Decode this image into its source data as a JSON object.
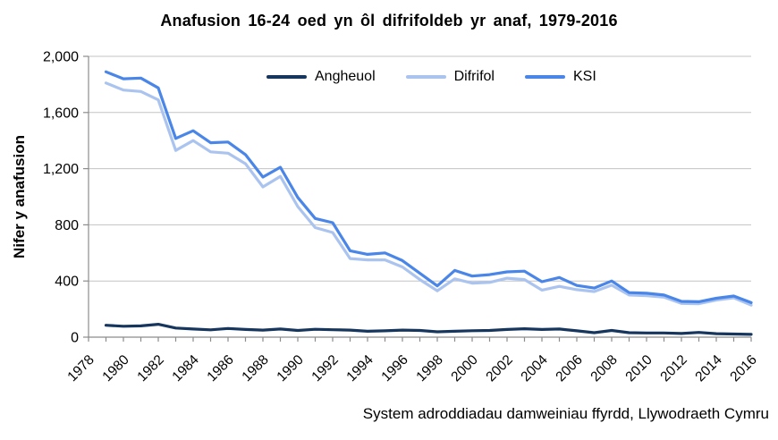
{
  "chart": {
    "title": "Anafusion  16-24  oed yn ôl difrifoldeb  yr anaf, 1979-2016",
    "ylabel": "Nifer y anafusion",
    "source": "System adroddiadau damweiniau ffyrdd, Llywodraeth Cymru"
  },
  "chart_data": {
    "type": "line",
    "title": "Anafusion 16-24 oed yn ôl difrifoldeb yr anaf, 1979-2016",
    "xlabel": "",
    "ylabel": "Nifer y anafusion",
    "source": "System adroddiadau damweiniau ffyrdd, Llywodraeth Cymru",
    "xlim": [
      1978,
      2016
    ],
    "ylim": [
      0,
      2000
    ],
    "grid": "horizontal",
    "legend_position": "top-center",
    "ytick_values": [
      0,
      400,
      800,
      1200,
      1600,
      2000
    ],
    "ytick_labels": [
      "0",
      "400",
      "800",
      "1,200",
      "1,600",
      "2,000"
    ],
    "xtick_label_years": [
      1978,
      1980,
      1982,
      1984,
      1986,
      1988,
      1990,
      1992,
      1994,
      1996,
      1998,
      2000,
      2002,
      2004,
      2006,
      2008,
      2010,
      2012,
      2014,
      2016
    ],
    "x": [
      1979,
      1980,
      1981,
      1982,
      1983,
      1984,
      1985,
      1986,
      1987,
      1988,
      1989,
      1990,
      1991,
      1992,
      1993,
      1994,
      1995,
      1996,
      1997,
      1998,
      1999,
      2000,
      2001,
      2002,
      2003,
      2004,
      2005,
      2006,
      2007,
      2008,
      2009,
      2010,
      2011,
      2012,
      2013,
      2014,
      2015,
      2016
    ],
    "series": [
      {
        "name": "Angheuol",
        "color": "#17365d",
        "values": [
          85,
          78,
          80,
          92,
          65,
          58,
          52,
          62,
          55,
          50,
          58,
          48,
          56,
          53,
          50,
          42,
          45,
          50,
          48,
          38,
          42,
          46,
          48,
          55,
          60,
          55,
          58,
          45,
          32,
          48,
          32,
          30,
          30,
          26,
          34,
          25,
          22,
          20
        ]
      },
      {
        "name": "Difrifol",
        "color": "#abc4ef",
        "values": [
          1810,
          1760,
          1750,
          1690,
          1330,
          1400,
          1320,
          1310,
          1235,
          1070,
          1145,
          930,
          780,
          745,
          560,
          550,
          550,
          500,
          410,
          330,
          415,
          385,
          390,
          420,
          410,
          335,
          362,
          338,
          325,
          370,
          300,
          295,
          285,
          240,
          238,
          264,
          280,
          228
        ]
      },
      {
        "name": "KSI",
        "color": "#4a86e8",
        "values": [
          1890,
          1840,
          1845,
          1775,
          1415,
          1470,
          1385,
          1390,
          1300,
          1140,
          1210,
          995,
          845,
          815,
          615,
          590,
          600,
          545,
          455,
          365,
          475,
          435,
          445,
          465,
          470,
          395,
          425,
          368,
          350,
          400,
          317,
          313,
          300,
          255,
          252,
          277,
          293,
          246
        ]
      }
    ],
    "style": {
      "grid_color": "#c3c3c3",
      "axis_color": "#8c8c8c",
      "text_color": "#000000"
    }
  }
}
